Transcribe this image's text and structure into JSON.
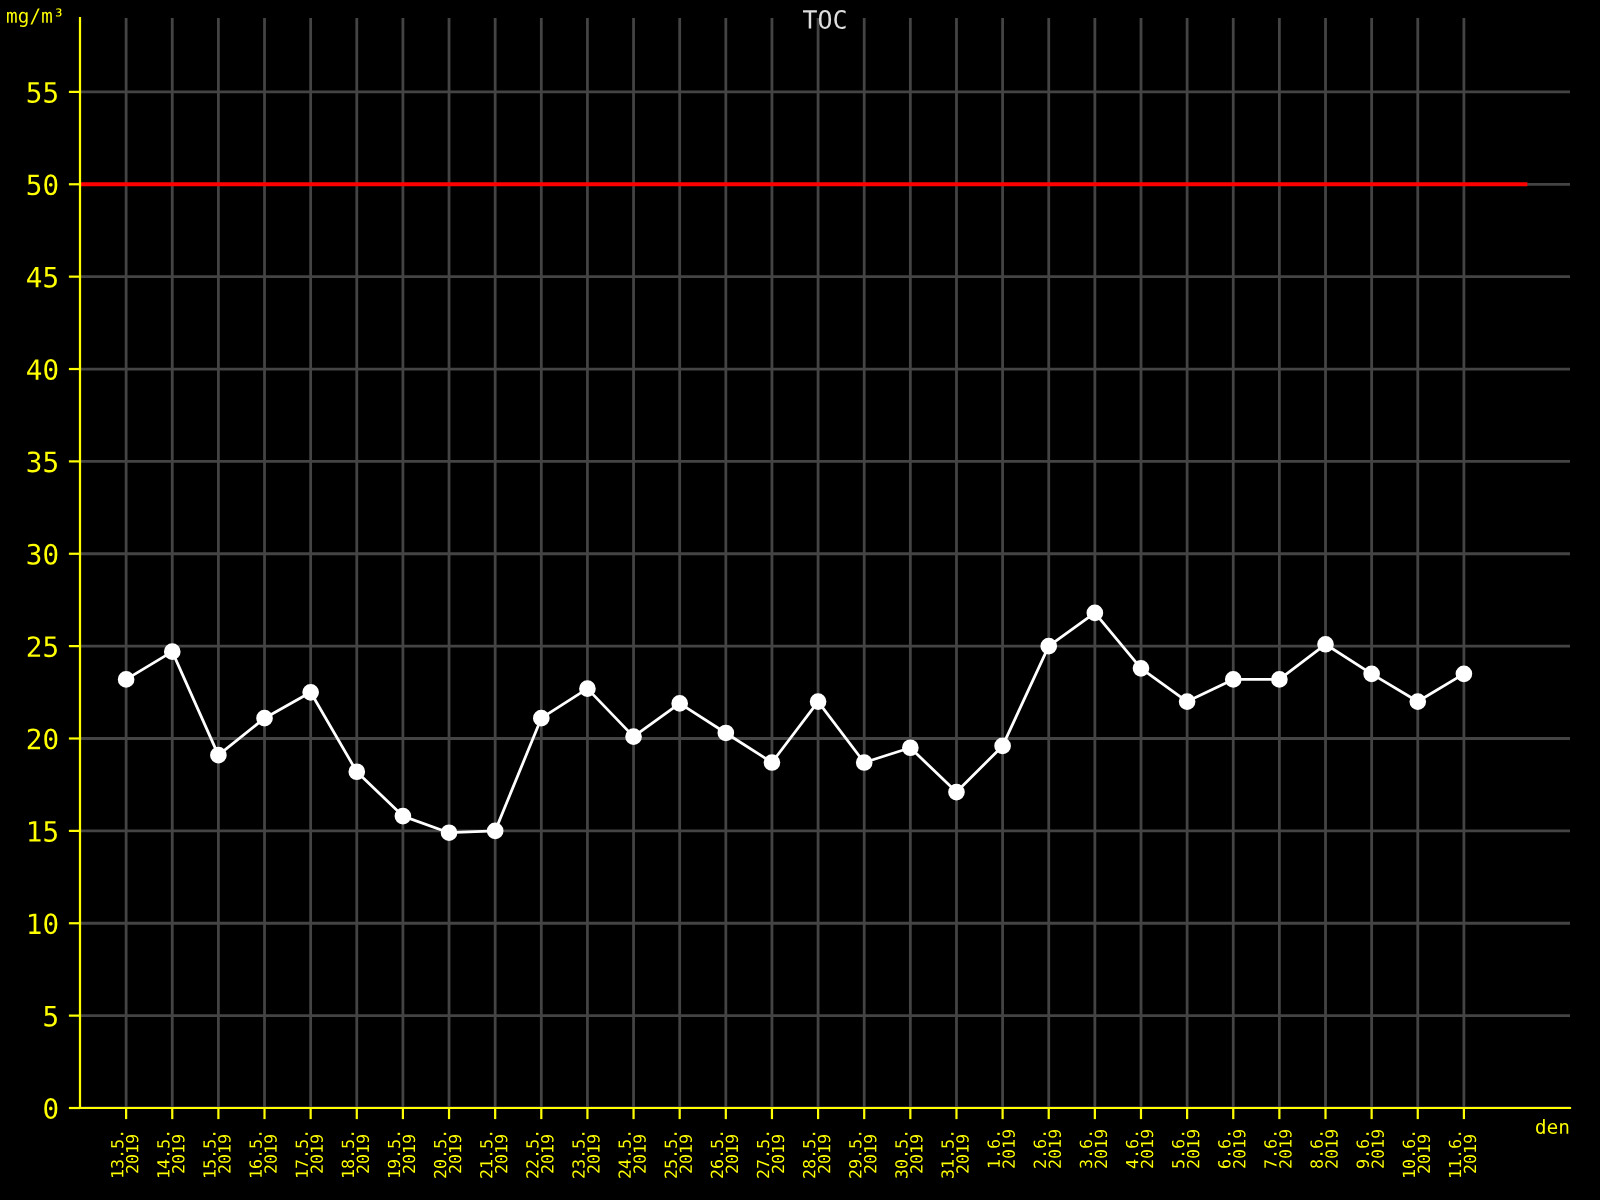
{
  "chart_data": {
    "type": "line",
    "title": "TOC",
    "ylabel": "mg/m³",
    "xlabel": "den",
    "categories": [
      "13.5.\n2019",
      "14.5.\n2019",
      "15.5.\n2019",
      "16.5.\n2019",
      "17.5.\n2019",
      "18.5.\n2019",
      "19.5.\n2019",
      "20.5.\n2019",
      "21.5.\n2019",
      "22.5.\n2019",
      "23.5.\n2019",
      "24.5.\n2019",
      "25.5.\n2019",
      "26.5.\n2019",
      "27.5.\n2019",
      "28.5.\n2019",
      "29.5.\n2019",
      "30.5.\n2019",
      "31.5.\n2019",
      "1.6.\n2019",
      "2.6.\n2019",
      "3.6.\n2019",
      "4.6.\n2019",
      "5.6.\n2019",
      "6.6.\n2019",
      "7.6.\n2019",
      "8.6.\n2019",
      "9.6.\n2019",
      "10.6.\n2019",
      "11.6.\n2019"
    ],
    "series": [
      {
        "color": "#ffffff",
        "values": [
          23.2,
          24.7,
          19.1,
          21.1,
          22.5,
          18.2,
          15.8,
          14.9,
          15.0,
          21.1,
          22.7,
          20.1,
          21.9,
          20.3,
          18.7,
          22.0,
          18.7,
          19.5,
          17.1,
          19.6,
          25.0,
          26.8,
          23.8,
          22.0,
          23.2,
          23.2,
          25.1,
          23.5,
          22.0,
          23.5
        ]
      }
    ],
    "ylim": [
      0,
      59
    ],
    "yticks": [
      0,
      5,
      10,
      15,
      20,
      25,
      30,
      35,
      40,
      45,
      50,
      55
    ],
    "ref_lines": [
      {
        "axis": "y",
        "value": 50,
        "color": "#ff0000"
      }
    ],
    "grid": true,
    "legend": false,
    "marker": "circle",
    "line_style": "solid"
  }
}
